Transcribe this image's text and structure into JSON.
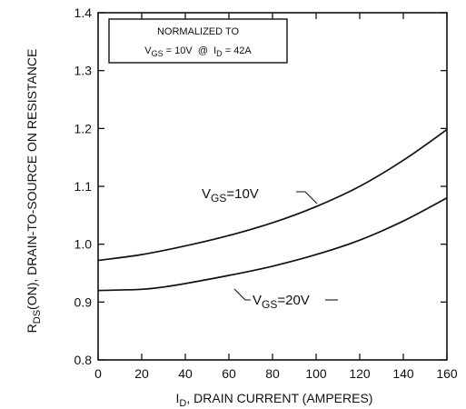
{
  "chart_data": {
    "type": "line",
    "xlabel": "I",
    "xlabel_sub": "D",
    "xlabel_rest": ", DRAIN CURRENT (AMPERES)",
    "ylabel": "R",
    "ylabel_sub": "DS",
    "ylabel_rest": "(ON), DRAIN-TO-SOURCE ON RESISTANCE",
    "xlim": [
      0,
      160
    ],
    "ylim": [
      0.8,
      1.4
    ],
    "x_ticks": [
      "0",
      "20",
      "40",
      "60",
      "80",
      "100",
      "120",
      "140",
      "160"
    ],
    "y_ticks": [
      "0.8",
      "0.9",
      "1.0",
      "1.1",
      "1.2",
      "1.3",
      "1.4"
    ],
    "grid": false,
    "annotation": {
      "line1": "NORMALIZED TO",
      "line2": {
        "v": "V",
        "v_sub": "GS",
        "v_rest": " = 10V  @  ",
        "i": "I",
        "i_sub": "D",
        "i_rest": " = 42A"
      }
    },
    "series": [
      {
        "name": "VGS=10V",
        "label": {
          "v": "V",
          "sub": "GS",
          "rest": "=10V"
        },
        "x": [
          0,
          20,
          40,
          60,
          80,
          100,
          120,
          140,
          160
        ],
        "y": [
          0.972,
          0.982,
          0.997,
          1.015,
          1.037,
          1.065,
          1.1,
          1.145,
          1.198
        ]
      },
      {
        "name": "VGS=20V",
        "label": {
          "v": "V",
          "sub": "GS",
          "rest": "=20V"
        },
        "x": [
          0,
          20,
          30,
          40,
          60,
          80,
          100,
          120,
          140,
          160
        ],
        "y": [
          0.92,
          0.922,
          0.926,
          0.932,
          0.946,
          0.962,
          0.982,
          1.007,
          1.04,
          1.08
        ]
      }
    ]
  }
}
